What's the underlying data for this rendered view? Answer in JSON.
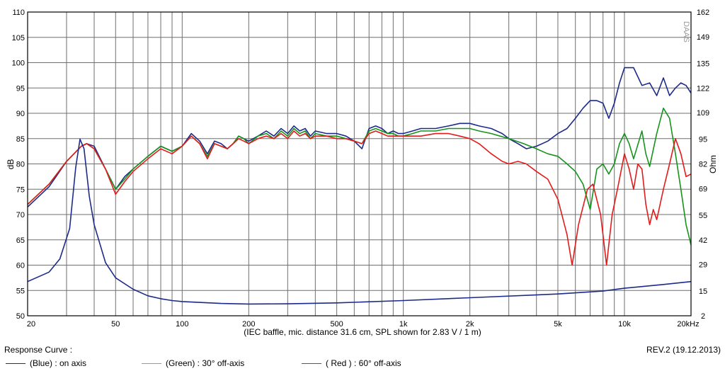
{
  "chart_data": {
    "type": "line",
    "caption": "(IEC baffle, mic. distance 31.6 cm, SPL shown for 2.83 V / 1 m)",
    "watermark": "DAAS",
    "x_scale": "log",
    "xlim": [
      20,
      20000
    ],
    "ylim": [
      50,
      110
    ],
    "y2lim": [
      2,
      162
    ],
    "ylabel": "dB",
    "y2label": "Ohm",
    "x_ticks": [
      {
        "value": 20,
        "label": "20"
      },
      {
        "value": 50,
        "label": "50"
      },
      {
        "value": 100,
        "label": "100"
      },
      {
        "value": 200,
        "label": "200"
      },
      {
        "value": 500,
        "label": "500"
      },
      {
        "value": 1000,
        "label": "1k"
      },
      {
        "value": 2000,
        "label": "2k"
      },
      {
        "value": 5000,
        "label": "5k"
      },
      {
        "value": 10000,
        "label": "10k"
      },
      {
        "value": 20000,
        "label": "20kHz"
      }
    ],
    "y_ticks": [
      {
        "value": 50,
        "label": "50"
      },
      {
        "value": 55,
        "label": "55"
      },
      {
        "value": 60,
        "label": "60"
      },
      {
        "value": 65,
        "label": "65"
      },
      {
        "value": 70,
        "label": "70"
      },
      {
        "value": 75,
        "label": "75"
      },
      {
        "value": 80,
        "label": "80"
      },
      {
        "value": 85,
        "label": "85"
      },
      {
        "value": 90,
        "label": "90"
      },
      {
        "value": 95,
        "label": "95"
      },
      {
        "value": 100,
        "label": "100"
      },
      {
        "value": 105,
        "label": "105"
      },
      {
        "value": 110,
        "label": "110"
      }
    ],
    "y2_ticks": [
      {
        "value": 2,
        "label": "2"
      },
      {
        "value": 15,
        "label": "15"
      },
      {
        "value": 29,
        "label": "29"
      },
      {
        "value": 42,
        "label": "42"
      },
      {
        "value": 55,
        "label": "55"
      },
      {
        "value": 69,
        "label": "69"
      },
      {
        "value": 82,
        "label": "82"
      },
      {
        "value": 95,
        "label": "95"
      },
      {
        "value": 109,
        "label": "109"
      },
      {
        "value": 122,
        "label": "122"
      },
      {
        "value": 135,
        "label": "135"
      },
      {
        "value": 149,
        "label": "149"
      },
      {
        "value": 162,
        "label": "162"
      }
    ],
    "series": [
      {
        "id": "on_axis",
        "color": "#1c2a8a",
        "values": [
          [
            20,
            71.5
          ],
          [
            25,
            75.5
          ],
          [
            30,
            80.5
          ],
          [
            35,
            83.5
          ],
          [
            37,
            84
          ],
          [
            40,
            83.5
          ],
          [
            45,
            79
          ],
          [
            50,
            75
          ],
          [
            55,
            77.5
          ],
          [
            60,
            79
          ],
          [
            70,
            81.5
          ],
          [
            80,
            83.5
          ],
          [
            90,
            82.5
          ],
          [
            100,
            83.5
          ],
          [
            110,
            86
          ],
          [
            120,
            84.5
          ],
          [
            130,
            82
          ],
          [
            140,
            84.5
          ],
          [
            150,
            84
          ],
          [
            160,
            83
          ],
          [
            170,
            84
          ],
          [
            180,
            85.5
          ],
          [
            190,
            85
          ],
          [
            200,
            84.5
          ],
          [
            220,
            85.5
          ],
          [
            240,
            86.5
          ],
          [
            260,
            85.5
          ],
          [
            280,
            87
          ],
          [
            300,
            86
          ],
          [
            320,
            87.5
          ],
          [
            340,
            86.5
          ],
          [
            360,
            87
          ],
          [
            380,
            85.5
          ],
          [
            400,
            86.5
          ],
          [
            450,
            86
          ],
          [
            500,
            86
          ],
          [
            550,
            85.5
          ],
          [
            600,
            84.5
          ],
          [
            650,
            83
          ],
          [
            700,
            87
          ],
          [
            750,
            87.5
          ],
          [
            800,
            87
          ],
          [
            850,
            86
          ],
          [
            900,
            86.5
          ],
          [
            950,
            86
          ],
          [
            1000,
            86
          ],
          [
            1100,
            86.5
          ],
          [
            1200,
            87
          ],
          [
            1400,
            87
          ],
          [
            1600,
            87.5
          ],
          [
            1800,
            88
          ],
          [
            2000,
            88
          ],
          [
            2200,
            87.5
          ],
          [
            2500,
            87
          ],
          [
            2800,
            86
          ],
          [
            3000,
            85
          ],
          [
            3300,
            84
          ],
          [
            3600,
            83
          ],
          [
            4000,
            83.5
          ],
          [
            4500,
            84.5
          ],
          [
            5000,
            86
          ],
          [
            5500,
            87
          ],
          [
            6000,
            89
          ],
          [
            6500,
            91
          ],
          [
            7000,
            92.5
          ],
          [
            7500,
            92.5
          ],
          [
            8000,
            92
          ],
          [
            8500,
            89
          ],
          [
            9000,
            92
          ],
          [
            9500,
            96
          ],
          [
            10000,
            99
          ],
          [
            11000,
            99
          ],
          [
            12000,
            95.5
          ],
          [
            13000,
            96
          ],
          [
            14000,
            93.5
          ],
          [
            15000,
            97
          ],
          [
            16000,
            93.5
          ],
          [
            17000,
            95
          ],
          [
            18000,
            96
          ],
          [
            19000,
            95.5
          ],
          [
            20000,
            94
          ]
        ]
      },
      {
        "id": "off_axis_30",
        "color": "#17931c",
        "values": [
          [
            20,
            72
          ],
          [
            25,
            76
          ],
          [
            30,
            80.5
          ],
          [
            35,
            83.5
          ],
          [
            37,
            84
          ],
          [
            40,
            83
          ],
          [
            45,
            79
          ],
          [
            50,
            75
          ],
          [
            55,
            77
          ],
          [
            60,
            79
          ],
          [
            70,
            81.5
          ],
          [
            80,
            83.5
          ],
          [
            90,
            82.5
          ],
          [
            100,
            83.5
          ],
          [
            110,
            85.5
          ],
          [
            120,
            84
          ],
          [
            130,
            81.5
          ],
          [
            140,
            84
          ],
          [
            150,
            83.5
          ],
          [
            160,
            83
          ],
          [
            170,
            84
          ],
          [
            180,
            85.5
          ],
          [
            190,
            85
          ],
          [
            200,
            84
          ],
          [
            220,
            85.5
          ],
          [
            240,
            86
          ],
          [
            260,
            85
          ],
          [
            280,
            86.5
          ],
          [
            300,
            85.5
          ],
          [
            320,
            87
          ],
          [
            340,
            86
          ],
          [
            360,
            86.5
          ],
          [
            380,
            85
          ],
          [
            400,
            86
          ],
          [
            450,
            85.5
          ],
          [
            500,
            85.5
          ],
          [
            550,
            85
          ],
          [
            600,
            84.5
          ],
          [
            650,
            84
          ],
          [
            700,
            86.5
          ],
          [
            750,
            87
          ],
          [
            800,
            86.5
          ],
          [
            850,
            86
          ],
          [
            900,
            86
          ],
          [
            950,
            85.5
          ],
          [
            1000,
            85.5
          ],
          [
            1100,
            86
          ],
          [
            1200,
            86.5
          ],
          [
            1400,
            86.5
          ],
          [
            1600,
            87
          ],
          [
            1800,
            87
          ],
          [
            2000,
            87
          ],
          [
            2200,
            86.5
          ],
          [
            2500,
            86
          ],
          [
            3000,
            85
          ],
          [
            3500,
            84
          ],
          [
            4000,
            83
          ],
          [
            4500,
            82
          ],
          [
            5000,
            81.5
          ],
          [
            5500,
            80
          ],
          [
            6000,
            78.5
          ],
          [
            6500,
            76
          ],
          [
            7000,
            71
          ],
          [
            7500,
            79
          ],
          [
            8000,
            80
          ],
          [
            8500,
            78
          ],
          [
            9000,
            80
          ],
          [
            9500,
            84
          ],
          [
            10000,
            86
          ],
          [
            10500,
            84
          ],
          [
            11000,
            81
          ],
          [
            12000,
            86.5
          ],
          [
            12500,
            82
          ],
          [
            13000,
            79.5
          ],
          [
            14000,
            86
          ],
          [
            15000,
            91
          ],
          [
            16000,
            89
          ],
          [
            17000,
            82
          ],
          [
            18000,
            75
          ],
          [
            19000,
            68
          ],
          [
            20000,
            64
          ]
        ]
      },
      {
        "id": "off_axis_60",
        "color": "#e21b1b",
        "values": [
          [
            20,
            72
          ],
          [
            25,
            76
          ],
          [
            30,
            80.5
          ],
          [
            35,
            83.5
          ],
          [
            37,
            84
          ],
          [
            40,
            83
          ],
          [
            45,
            79
          ],
          [
            50,
            74
          ],
          [
            55,
            76.5
          ],
          [
            60,
            78.5
          ],
          [
            70,
            81
          ],
          [
            80,
            83
          ],
          [
            90,
            82
          ],
          [
            100,
            83.5
          ],
          [
            110,
            85.5
          ],
          [
            120,
            84
          ],
          [
            130,
            81
          ],
          [
            140,
            84
          ],
          [
            150,
            83.5
          ],
          [
            160,
            83
          ],
          [
            170,
            84
          ],
          [
            180,
            85
          ],
          [
            190,
            84.5
          ],
          [
            200,
            84
          ],
          [
            220,
            85
          ],
          [
            240,
            85.5
          ],
          [
            260,
            85
          ],
          [
            280,
            86
          ],
          [
            300,
            85
          ],
          [
            320,
            86.5
          ],
          [
            340,
            85.5
          ],
          [
            360,
            86
          ],
          [
            380,
            85
          ],
          [
            400,
            85.5
          ],
          [
            450,
            85.5
          ],
          [
            500,
            85
          ],
          [
            550,
            85
          ],
          [
            600,
            84.5
          ],
          [
            650,
            84
          ],
          [
            700,
            86
          ],
          [
            750,
            86.5
          ],
          [
            800,
            86
          ],
          [
            850,
            85.5
          ],
          [
            900,
            85.5
          ],
          [
            950,
            85.5
          ],
          [
            1000,
            85.5
          ],
          [
            1100,
            85.5
          ],
          [
            1200,
            85.5
          ],
          [
            1400,
            86
          ],
          [
            1600,
            86
          ],
          [
            1800,
            85.5
          ],
          [
            2000,
            85
          ],
          [
            2200,
            84
          ],
          [
            2500,
            82
          ],
          [
            2800,
            80.5
          ],
          [
            3000,
            80
          ],
          [
            3300,
            80.5
          ],
          [
            3600,
            80
          ],
          [
            4000,
            78.5
          ],
          [
            4500,
            77
          ],
          [
            5000,
            73
          ],
          [
            5500,
            66
          ],
          [
            5800,
            60
          ],
          [
            6200,
            68
          ],
          [
            6800,
            75
          ],
          [
            7200,
            76
          ],
          [
            7800,
            70
          ],
          [
            8300,
            60
          ],
          [
            8800,
            70
          ],
          [
            9300,
            75
          ],
          [
            10000,
            82
          ],
          [
            10500,
            79
          ],
          [
            11000,
            75
          ],
          [
            11500,
            80
          ],
          [
            12000,
            79
          ],
          [
            12500,
            72
          ],
          [
            13000,
            68
          ],
          [
            13500,
            71
          ],
          [
            14000,
            69
          ],
          [
            15000,
            75
          ],
          [
            16000,
            80
          ],
          [
            17000,
            85
          ],
          [
            18000,
            82
          ],
          [
            19000,
            77.5
          ],
          [
            20000,
            78
          ]
        ]
      },
      {
        "id": "impedance",
        "color": "#1c2a8a",
        "axis": "y2",
        "values": [
          [
            20,
            20
          ],
          [
            25,
            25
          ],
          [
            28,
            32
          ],
          [
            31,
            48
          ],
          [
            33,
            80
          ],
          [
            34.5,
            95
          ],
          [
            36,
            90
          ],
          [
            38,
            65
          ],
          [
            40,
            50
          ],
          [
            45,
            30
          ],
          [
            50,
            22
          ],
          [
            60,
            16
          ],
          [
            70,
            12.5
          ],
          [
            80,
            11
          ],
          [
            90,
            10
          ],
          [
            100,
            9.5
          ],
          [
            150,
            8.5
          ],
          [
            200,
            8.2
          ],
          [
            300,
            8.3
          ],
          [
            500,
            8.8
          ],
          [
            1000,
            10
          ],
          [
            2000,
            11.5
          ],
          [
            5000,
            13.5
          ],
          [
            8000,
            15
          ],
          [
            10000,
            16.5
          ],
          [
            15000,
            18.5
          ],
          [
            20000,
            20
          ]
        ]
      }
    ]
  },
  "legend": {
    "title": "Response Curve :",
    "revision": "REV.2 (19.12.2013)",
    "items": [
      {
        "label": "(Blue)  : on axis",
        "color": "#1c2a8a"
      },
      {
        "label": "(Green) : 30° off-axis",
        "color": "#7fbf1f"
      },
      {
        "label": "( Red ) : 60° off-axis",
        "color": "#e21b1b"
      }
    ]
  }
}
